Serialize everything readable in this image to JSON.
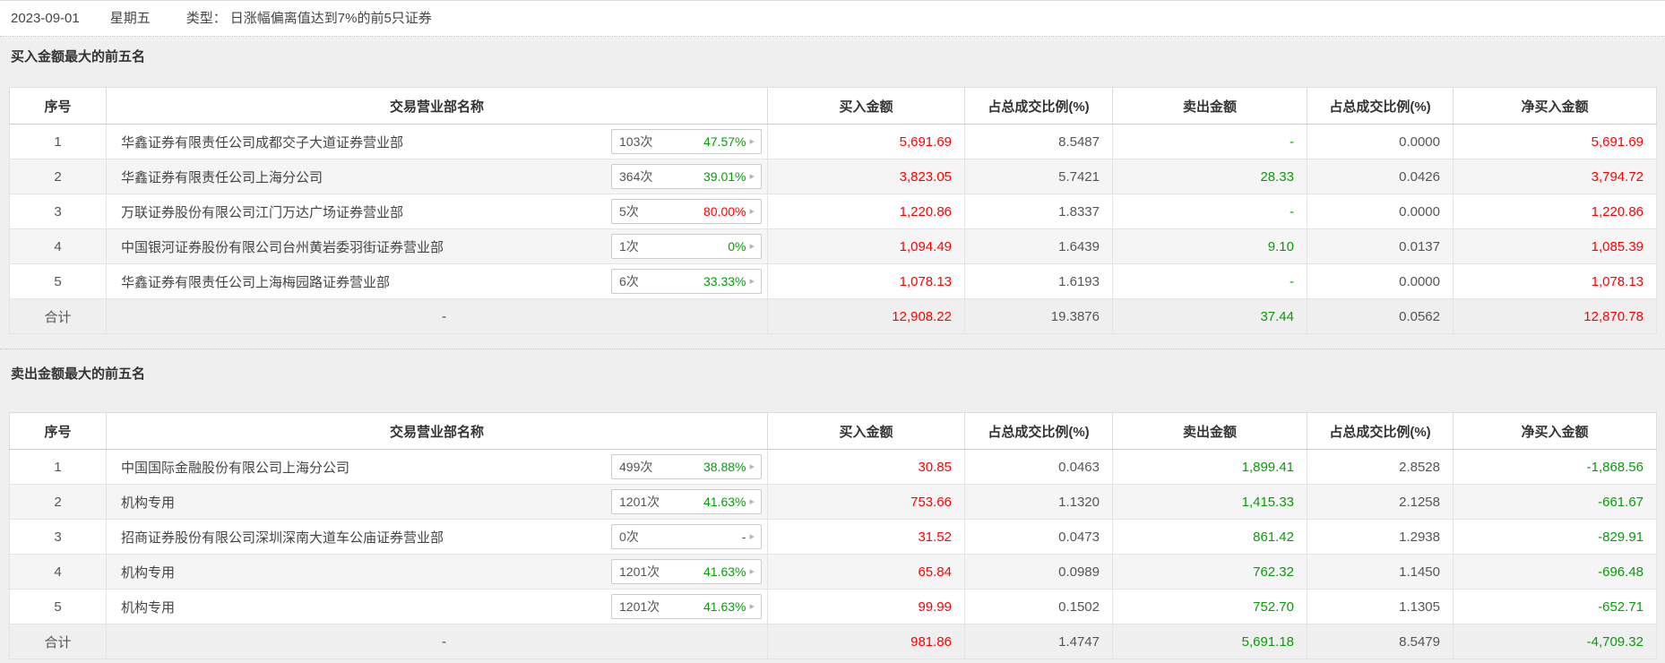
{
  "date_bar": {
    "date": "2023-09-01",
    "weekday": "星期五",
    "type_label": "类型：",
    "type_value": "日涨幅偏离值达到7%的前5只证券"
  },
  "colors": {
    "red": "#ff0000",
    "green": "#0a9a0a",
    "gray": "#555555"
  },
  "columns": [
    "序号",
    "交易营业部名称",
    "买入金额",
    "占总成交比例(%)",
    "卖出金额",
    "占总成交比例(%)",
    "净买入金额"
  ],
  "buy_section": {
    "title": "买入金额最大的前五名",
    "rows": [
      {
        "rank": "1",
        "name": "华鑫证券有限责任公司成都交子大道证券营业部",
        "count": "103次",
        "rate": "47.57%",
        "rate_color": "green",
        "buy": "5,691.69",
        "buy_pct": "8.5487",
        "sell": "-",
        "sell_pct": "0.0000",
        "net": "5,691.69",
        "net_color": "red"
      },
      {
        "rank": "2",
        "name": "华鑫证券有限责任公司上海分公司",
        "count": "364次",
        "rate": "39.01%",
        "rate_color": "green",
        "buy": "3,823.05",
        "buy_pct": "5.7421",
        "sell": "28.33",
        "sell_pct": "0.0426",
        "net": "3,794.72",
        "net_color": "red"
      },
      {
        "rank": "3",
        "name": "万联证券股份有限公司江门万达广场证券营业部",
        "count": "5次",
        "rate": "80.00%",
        "rate_color": "red",
        "buy": "1,220.86",
        "buy_pct": "1.8337",
        "sell": "-",
        "sell_pct": "0.0000",
        "net": "1,220.86",
        "net_color": "red"
      },
      {
        "rank": "4",
        "name": "中国银河证券股份有限公司台州黄岩委羽街证券营业部",
        "count": "1次",
        "rate": "0%",
        "rate_color": "green",
        "buy": "1,094.49",
        "buy_pct": "1.6439",
        "sell": "9.10",
        "sell_pct": "0.0137",
        "net": "1,085.39",
        "net_color": "red"
      },
      {
        "rank": "5",
        "name": "华鑫证券有限责任公司上海梅园路证券营业部",
        "count": "6次",
        "rate": "33.33%",
        "rate_color": "green",
        "buy": "1,078.13",
        "buy_pct": "1.6193",
        "sell": "-",
        "sell_pct": "0.0000",
        "net": "1,078.13",
        "net_color": "red"
      }
    ],
    "total": {
      "label": "合计",
      "name": "-",
      "buy": "12,908.22",
      "buy_pct": "19.3876",
      "sell": "37.44",
      "sell_pct": "0.0562",
      "net": "12,870.78",
      "net_color": "red"
    }
  },
  "sell_section": {
    "title": "卖出金额最大的前五名",
    "rows": [
      {
        "rank": "1",
        "name": "中国国际金融股份有限公司上海分公司",
        "count": "499次",
        "rate": "38.88%",
        "rate_color": "green",
        "buy": "30.85",
        "buy_pct": "0.0463",
        "sell": "1,899.41",
        "sell_pct": "2.8528",
        "net": "-1,868.56",
        "net_color": "green"
      },
      {
        "rank": "2",
        "name": "机构专用",
        "count": "1201次",
        "rate": "41.63%",
        "rate_color": "green",
        "buy": "753.66",
        "buy_pct": "1.1320",
        "sell": "1,415.33",
        "sell_pct": "2.1258",
        "net": "-661.67",
        "net_color": "green"
      },
      {
        "rank": "3",
        "name": "招商证券股份有限公司深圳深南大道车公庙证券营业部",
        "count": "0次",
        "rate": "-",
        "rate_color": "gray",
        "buy": "31.52",
        "buy_pct": "0.0473",
        "sell": "861.42",
        "sell_pct": "1.2938",
        "net": "-829.91",
        "net_color": "green"
      },
      {
        "rank": "4",
        "name": "机构专用",
        "count": "1201次",
        "rate": "41.63%",
        "rate_color": "green",
        "buy": "65.84",
        "buy_pct": "0.0989",
        "sell": "762.32",
        "sell_pct": "1.1450",
        "net": "-696.48",
        "net_color": "green"
      },
      {
        "rank": "5",
        "name": "机构专用",
        "count": "1201次",
        "rate": "41.63%",
        "rate_color": "green",
        "buy": "99.99",
        "buy_pct": "0.1502",
        "sell": "752.70",
        "sell_pct": "1.1305",
        "net": "-652.71",
        "net_color": "green"
      }
    ],
    "total": {
      "label": "合计",
      "name": "-",
      "buy": "981.86",
      "buy_pct": "1.4747",
      "sell": "5,691.18",
      "sell_pct": "8.5479",
      "net": "-4,709.32",
      "net_color": "green"
    }
  },
  "badge_arrow_icon": "▸"
}
